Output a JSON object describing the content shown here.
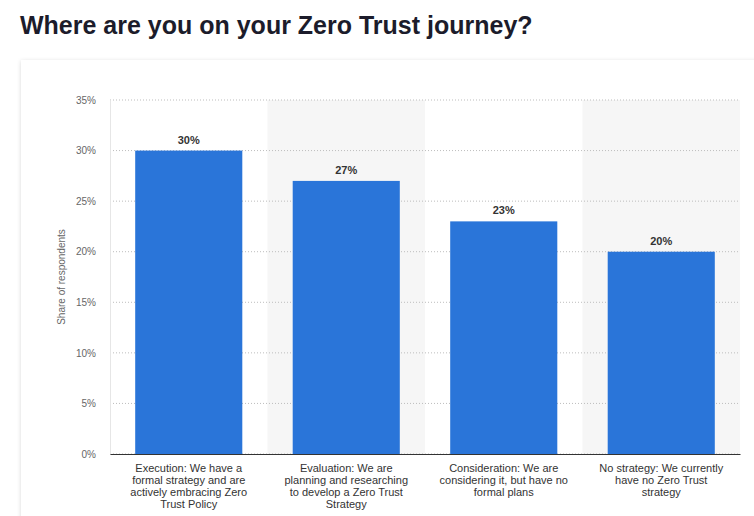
{
  "chart_data": {
    "type": "bar",
    "title": "Where are you on your Zero Trust journey?",
    "y_label": "Share of respondents",
    "categories": [
      "Execution: We have a formal strategy and are actively embracing Zero Trust Policy",
      "Evaluation: We are planning and researching to develop a Zero Trust Strategy",
      "Consideration: We are considering it, but have no formal plans",
      "No strategy: We currently have no Zero Trust strategy"
    ],
    "values": [
      30,
      27,
      23,
      20
    ],
    "value_labels": [
      "30%",
      "27%",
      "23%",
      "20%"
    ],
    "color": "#2a75d9",
    "ylim": [
      0,
      35
    ],
    "yticks": [
      {
        "value": 0,
        "label": "0%"
      },
      {
        "value": 5,
        "label": "5%"
      },
      {
        "value": 10,
        "label": "10%"
      },
      {
        "value": 15,
        "label": "15%"
      },
      {
        "value": 20,
        "label": "20%"
      },
      {
        "value": 25,
        "label": "25%"
      },
      {
        "value": 30,
        "label": "30%"
      },
      {
        "value": 35,
        "label": "35%"
      }
    ],
    "grid": true,
    "data_labels": true
  }
}
